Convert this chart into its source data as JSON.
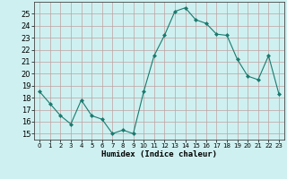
{
  "x": [
    0,
    1,
    2,
    3,
    4,
    5,
    6,
    7,
    8,
    9,
    10,
    11,
    12,
    13,
    14,
    15,
    16,
    17,
    18,
    19,
    20,
    21,
    22,
    23
  ],
  "y": [
    18.5,
    17.5,
    16.5,
    15.8,
    17.8,
    16.5,
    16.2,
    15.0,
    15.3,
    15.0,
    18.5,
    21.5,
    23.2,
    25.2,
    25.5,
    24.5,
    24.2,
    23.3,
    23.2,
    21.2,
    19.8,
    19.5,
    21.5,
    18.3
  ],
  "line_color": "#1a7a6e",
  "marker": "D",
  "marker_size": 2,
  "bg_color": "#cff0f0",
  "grid_color": "#c0a0a0",
  "xlabel": "Humidex (Indice chaleur)",
  "ylim": [
    14.5,
    26
  ],
  "xlim": [
    -0.5,
    23.5
  ],
  "yticks": [
    15,
    16,
    17,
    18,
    19,
    20,
    21,
    22,
    23,
    24,
    25
  ],
  "xticks": [
    0,
    1,
    2,
    3,
    4,
    5,
    6,
    7,
    8,
    9,
    10,
    11,
    12,
    13,
    14,
    15,
    16,
    17,
    18,
    19,
    20,
    21,
    22,
    23
  ]
}
